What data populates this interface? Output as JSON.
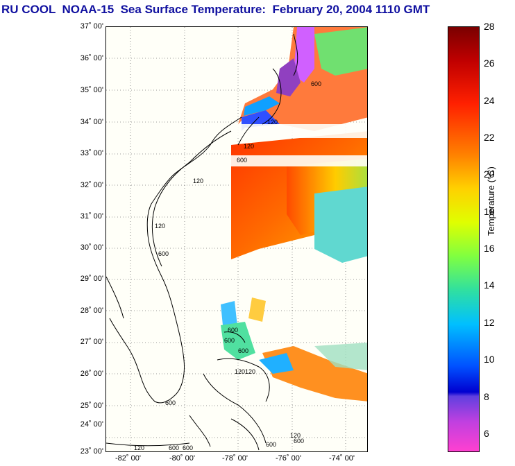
{
  "title": "RU COOL  NOAA-15  Sea Surface Temperature:  February 20, 2004 1110 GMT",
  "latitude_labels": [
    "37˚ 00'",
    "36˚ 00'",
    "35˚ 00'",
    "34˚ 00'",
    "33˚ 00'",
    "32˚ 00'",
    "31˚ 00'",
    "30˚ 00'",
    "29˚ 00'",
    "28˚ 00'",
    "27˚ 00'",
    "26˚ 00'",
    "25˚ 00'",
    "24˚ 00'",
    "23˚ 00'"
  ],
  "longitude_labels": [
    "-82˚ 00'",
    "-80˚ 00'",
    "-78˚ 00'",
    "-76˚ 00'",
    "-74˚ 00'"
  ],
  "colorbar": {
    "label": "Temperature (°C)",
    "ticks": [
      "28",
      "26",
      "24",
      "22",
      "20",
      "18",
      "16",
      "14",
      "12",
      "10",
      "8",
      "6"
    ],
    "range": [
      5,
      28
    ]
  },
  "contour_labels": [
    "120",
    "600",
    "120",
    "600",
    "120",
    "600",
    "120",
    "600",
    "600",
    "120",
    "600",
    "120",
    "600",
    "120",
    "600",
    "120",
    "600",
    "600",
    "600"
  ]
}
